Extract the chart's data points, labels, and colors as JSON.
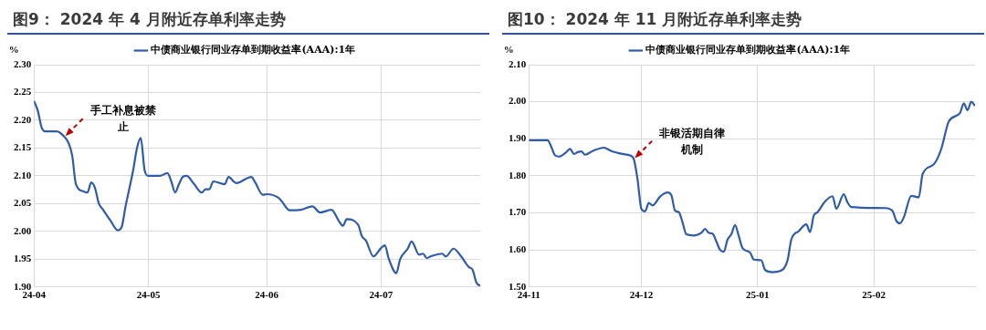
{
  "chart_data": [
    {
      "type": "line",
      "title": "图9：  2024 年 4 月附近存单利率走势",
      "ylabel": "%",
      "legend": "top",
      "grid": true,
      "xlim": [
        "2024-04-01",
        "2024-07-27"
      ],
      "xticks": [
        {
          "value": "2024-04-01",
          "label": "24-04"
        },
        {
          "value": "2024-05-01",
          "label": "24-05"
        },
        {
          "value": "2024-06-01",
          "label": "24-06"
        },
        {
          "value": "2024-07-01",
          "label": "24-07"
        }
      ],
      "ylim": [
        1.9,
        2.3
      ],
      "yticks": [
        {
          "value": 1.9,
          "label": "1.90"
        },
        {
          "value": 1.95,
          "label": "1.95"
        },
        {
          "value": 2.0,
          "label": "2.00"
        },
        {
          "value": 2.05,
          "label": "2.05"
        },
        {
          "value": 2.1,
          "label": "2.10"
        },
        {
          "value": 2.15,
          "label": "2.15"
        },
        {
          "value": 2.2,
          "label": "2.20"
        },
        {
          "value": 2.25,
          "label": "2.25"
        },
        {
          "value": 2.3,
          "label": "2.30"
        }
      ],
      "annotations": [
        {
          "text": "手工补息被禁止",
          "x": "2024-04-09",
          "y": 2.17
        }
      ],
      "series": [
        {
          "name": "中债商业银行同业存单到期收益率(AAA):1年",
          "color": "#2f5ca8",
          "line_style": "solid",
          "x": [
            "2024-04-01",
            "2024-04-02",
            "2024-04-03",
            "2024-04-04",
            "2024-04-07",
            "2024-04-09",
            "2024-04-10",
            "2024-04-11",
            "2024-04-12",
            "2024-04-14",
            "2024-04-15",
            "2024-04-16",
            "2024-04-17",
            "2024-04-18",
            "2024-04-19",
            "2024-04-21",
            "2024-04-23",
            "2024-04-24",
            "2024-04-25",
            "2024-04-27",
            "2024-04-28",
            "2024-04-29",
            "2024-04-30",
            "2024-05-01",
            "2024-05-04",
            "2024-05-06",
            "2024-05-07",
            "2024-05-08",
            "2024-05-09",
            "2024-05-10",
            "2024-05-11",
            "2024-05-13",
            "2024-05-15",
            "2024-05-16",
            "2024-05-17",
            "2024-05-18",
            "2024-05-21",
            "2024-05-22",
            "2024-05-24",
            "2024-05-28",
            "2024-05-29",
            "2024-05-31",
            "2024-06-01",
            "2024-06-04",
            "2024-06-05",
            "2024-06-07",
            "2024-06-10",
            "2024-06-13",
            "2024-06-15",
            "2024-06-18",
            "2024-06-20",
            "2024-06-21",
            "2024-06-22",
            "2024-06-25",
            "2024-06-26",
            "2024-06-27",
            "2024-06-29",
            "2024-07-01",
            "2024-07-02",
            "2024-07-03",
            "2024-07-05",
            "2024-07-06",
            "2024-07-08",
            "2024-07-09",
            "2024-07-11",
            "2024-07-12",
            "2024-07-13",
            "2024-07-14",
            "2024-07-17",
            "2024-07-18",
            "2024-07-20",
            "2024-07-22",
            "2024-07-24",
            "2024-07-25",
            "2024-07-26",
            "2024-07-27"
          ],
          "values": [
            2.235,
            2.217,
            2.187,
            2.18,
            2.18,
            2.17,
            2.16,
            2.137,
            2.085,
            2.072,
            2.07,
            2.088,
            2.078,
            2.05,
            2.04,
            2.02,
            2.002,
            2.008,
            2.045,
            2.11,
            2.15,
            2.168,
            2.11,
            2.1,
            2.1,
            2.105,
            2.09,
            2.07,
            2.085,
            2.098,
            2.1,
            2.085,
            2.07,
            2.076,
            2.076,
            2.09,
            2.085,
            2.098,
            2.087,
            2.098,
            2.088,
            2.066,
            2.067,
            2.061,
            2.054,
            2.038,
            2.039,
            2.045,
            2.034,
            2.039,
            2.018,
            2.01,
            2.022,
            2.012,
            1.991,
            1.984,
            1.955,
            1.97,
            1.975,
            1.951,
            1.925,
            1.95,
            1.969,
            1.982,
            1.958,
            1.96,
            1.952,
            1.955,
            1.96,
            1.955,
            1.969,
            1.955,
            1.936,
            1.931,
            1.908,
            1.902
          ]
        }
      ]
    },
    {
      "type": "line",
      "title": "图10：  2024 年 11 月附近存单利率走势",
      "ylabel": "%",
      "legend": "top",
      "grid": true,
      "xlim": [
        "2024-11-01",
        "2025-02-28"
      ],
      "xticks": [
        {
          "value": "2024-11-01",
          "label": "24-11"
        },
        {
          "value": "2024-12-01",
          "label": "24-12"
        },
        {
          "value": "2025-01-01",
          "label": "25-01"
        },
        {
          "value": "2025-02-01",
          "label": "25-02"
        }
      ],
      "ylim": [
        1.5,
        2.1
      ],
      "yticks": [
        {
          "value": 1.5,
          "label": "1.50"
        },
        {
          "value": 1.6,
          "label": "1.60"
        },
        {
          "value": 1.7,
          "label": "1.70"
        },
        {
          "value": 1.8,
          "label": "1.80"
        },
        {
          "value": 1.9,
          "label": "1.90"
        },
        {
          "value": 2.0,
          "label": "2.00"
        },
        {
          "value": 2.1,
          "label": "2.10"
        }
      ],
      "annotations": [
        {
          "text": "非银活期自律机制",
          "x": "2024-11-29",
          "y": 1.845
        }
      ],
      "series": [
        {
          "name": "中债商业银行同业存单到期收益率(AAA):1年",
          "color": "#2f5ca8",
          "line_style": "solid",
          "x": [
            "2024-11-01",
            "2024-11-06",
            "2024-11-07",
            "2024-11-08",
            "2024-11-09",
            "2024-11-11",
            "2024-11-12",
            "2024-11-13",
            "2024-11-14",
            "2024-11-15",
            "2024-11-16",
            "2024-11-18",
            "2024-11-21",
            "2024-11-23",
            "2024-11-26",
            "2024-11-28",
            "2024-11-29",
            "2024-11-30",
            "2024-12-01",
            "2024-12-02",
            "2024-12-03",
            "2024-12-04",
            "2024-12-06",
            "2024-12-08",
            "2024-12-09",
            "2024-12-10",
            "2024-12-11",
            "2024-12-12",
            "2024-12-13",
            "2024-12-15",
            "2024-12-17",
            "2024-12-18",
            "2024-12-19",
            "2024-12-20",
            "2024-12-21",
            "2024-12-22",
            "2024-12-23",
            "2024-12-24",
            "2024-12-25",
            "2024-12-26",
            "2024-12-27",
            "2024-12-28",
            "2024-12-30",
            "2024-12-31",
            "2025-01-02",
            "2025-01-03",
            "2025-01-05",
            "2025-01-07",
            "2025-01-09",
            "2025-01-10",
            "2025-01-12",
            "2025-01-14",
            "2025-01-15",
            "2025-01-16",
            "2025-01-17",
            "2025-01-19",
            "2025-01-21",
            "2025-01-22",
            "2025-01-24",
            "2025-01-25",
            "2025-01-26",
            "2025-02-04",
            "2025-02-06",
            "2025-02-07",
            "2025-02-08",
            "2025-02-09",
            "2025-02-11",
            "2025-02-13",
            "2025-02-14",
            "2025-02-17",
            "2025-02-19",
            "2025-02-21",
            "2025-02-24",
            "2025-02-25",
            "2025-02-26",
            "2025-02-27",
            "2025-02-28"
          ],
          "values": [
            1.896,
            1.896,
            1.878,
            1.855,
            1.852,
            1.864,
            1.873,
            1.859,
            1.864,
            1.866,
            1.857,
            1.867,
            1.876,
            1.867,
            1.859,
            1.855,
            1.845,
            1.79,
            1.711,
            1.704,
            1.727,
            1.72,
            1.744,
            1.755,
            1.748,
            1.706,
            1.702,
            1.674,
            1.642,
            1.639,
            1.646,
            1.657,
            1.646,
            1.644,
            1.623,
            1.6,
            1.595,
            1.628,
            1.642,
            1.667,
            1.637,
            1.605,
            1.593,
            1.574,
            1.572,
            1.546,
            1.54,
            1.543,
            1.572,
            1.628,
            1.651,
            1.669,
            1.648,
            1.693,
            1.702,
            1.731,
            1.745,
            1.711,
            1.75,
            1.728,
            1.716,
            1.713,
            1.705,
            1.679,
            1.672,
            1.688,
            1.746,
            1.742,
            1.804,
            1.831,
            1.873,
            1.947,
            1.97,
            1.996,
            1.977,
            2.0,
            1.989
          ]
        }
      ]
    }
  ]
}
